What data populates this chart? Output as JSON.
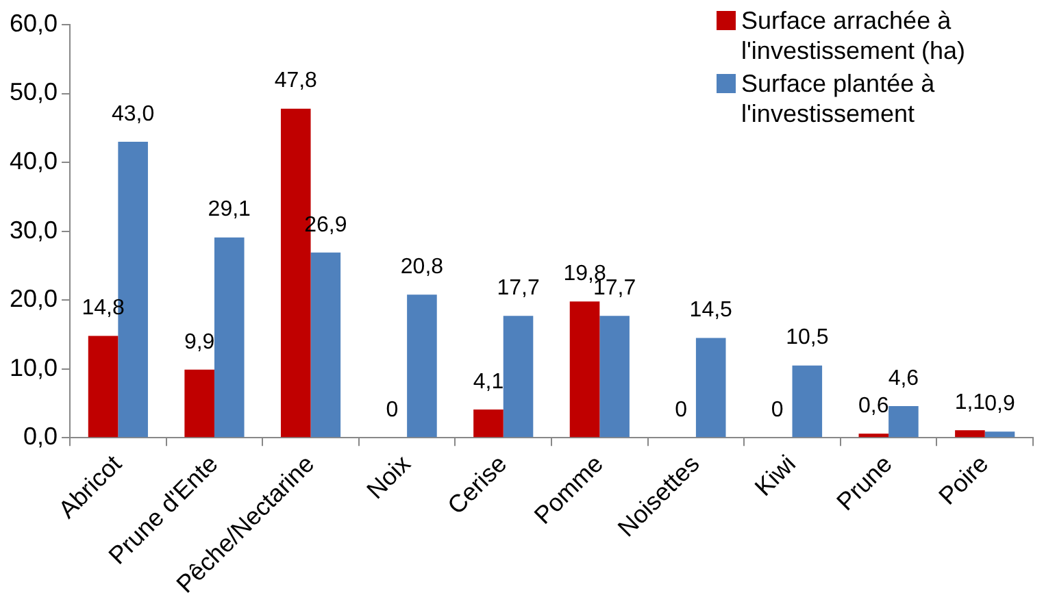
{
  "chart_data": {
    "type": "bar",
    "categories": [
      "Abricot",
      "Prune d'Ente",
      "Pêche/Nectarine",
      "Noix",
      "Cerise",
      "Pomme",
      "Noisettes",
      "Kiwi",
      "Prune",
      "Poire"
    ],
    "series": [
      {
        "name": "Surface arrachée à l'investissement (ha)",
        "color": "#c00000",
        "values": [
          14.8,
          9.9,
          47.8,
          0,
          4.1,
          19.8,
          0,
          0,
          0.6,
          1.1
        ],
        "value_labels": [
          "14,8",
          "9,9",
          "47,8",
          "0",
          "4,1",
          "19,8",
          "0",
          "0",
          "0,6",
          "1,1"
        ]
      },
      {
        "name": "Surface plantée à l'investissement",
        "color": "#4f81bd",
        "values": [
          43.0,
          29.1,
          26.9,
          20.8,
          17.7,
          17.7,
          14.5,
          10.5,
          4.6,
          0.9
        ],
        "value_labels": [
          "43,0",
          "29,1",
          "26,9",
          "20,8",
          "17,7",
          "17,7",
          "14,5",
          "10,5",
          "4,6",
          "0,9"
        ]
      }
    ],
    "ylim": [
      0,
      60
    ],
    "yticks": [
      {
        "value": 0,
        "label": "0,0"
      },
      {
        "value": 10,
        "label": "10,0"
      },
      {
        "value": 20,
        "label": "20,0"
      },
      {
        "value": 30,
        "label": "30,0"
      },
      {
        "value": 40,
        "label": "40,0"
      },
      {
        "value": 50,
        "label": "50,0"
      },
      {
        "value": 60,
        "label": "60,0"
      }
    ],
    "grid": false,
    "legend": "top right"
  }
}
